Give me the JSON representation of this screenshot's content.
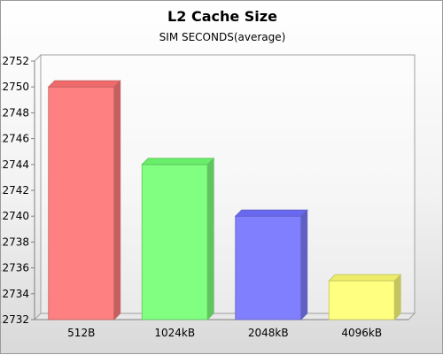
{
  "chart_data": {
    "type": "bar",
    "title": "L2 Cache Size",
    "subtitle": "SIM SECONDS(average)",
    "xlabel": "",
    "ylabel": "",
    "categories": [
      "512B",
      "1024kB",
      "2048kB",
      "4096kB"
    ],
    "values": [
      0.275,
      0.2744,
      0.274,
      0.2735
    ],
    "ylim": [
      0.2732,
      0.2752
    ],
    "yticks": [
      ".2732",
      ".2734",
      ".2736",
      ".2738",
      ".2740",
      ".2742",
      ".2744",
      ".2746",
      ".2748",
      ".2750",
      ".2752"
    ],
    "bar_colors": [
      "#ff8080",
      "#80ff80",
      "#8080ff",
      "#ffff80"
    ],
    "bar_top_colors": [
      "#f06a6a",
      "#68ee68",
      "#6868f0",
      "#ecec68"
    ],
    "bar_side_colors": [
      "#c46060",
      "#60c460",
      "#6060c4",
      "#c4c460"
    ],
    "grid": false,
    "style": "3d"
  }
}
